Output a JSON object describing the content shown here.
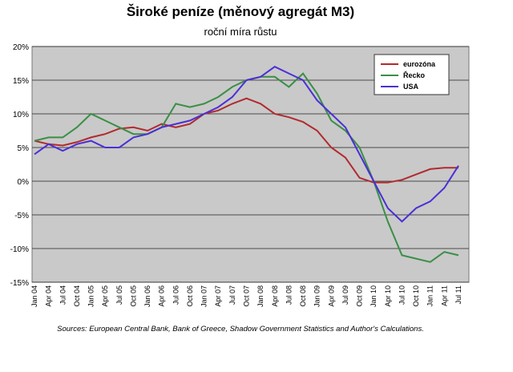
{
  "chart_data": {
    "type": "line",
    "title": "Široké peníze (měnový agregát M3)",
    "subtitle": "roční míra růstu",
    "source": "Sources: European Central Bank, Bank of Greece, Shadow Government Statistics and Author's Calculations.",
    "categories": [
      "Jan 04",
      "Apr 04",
      "Jul 04",
      "Oct 04",
      "Jan 05",
      "Apr 05",
      "Jul 05",
      "Oct 05",
      "Jan 06",
      "Apr 06",
      "Jul 06",
      "Oct 06",
      "Jan 07",
      "Apr 07",
      "Jul 07",
      "Oct 07",
      "Jan 08",
      "Apr 08",
      "Jul 08",
      "Oct 08",
      "Jan 09",
      "Apr 09",
      "Jul 09",
      "Oct 09",
      "Jan 10",
      "Apr 10",
      "Jul 10",
      "Oct 10",
      "Jan 11",
      "Apr 11",
      "Jul 11"
    ],
    "series": [
      {
        "name": "eurozóna",
        "color": "#b22a2e",
        "values": [
          6,
          5.5,
          5.3,
          5.8,
          6.5,
          7,
          7.8,
          8,
          7.5,
          8.5,
          8,
          8.5,
          10,
          10.5,
          11.5,
          12.3,
          11.5,
          10,
          9.5,
          8.8,
          7.5,
          5,
          3.5,
          0.5,
          -0.2,
          -0.2,
          0.2,
          1,
          1.8,
          2,
          2
        ]
      },
      {
        "name": "Řecko",
        "color": "#3a8f46",
        "values": [
          6,
          6.5,
          6.5,
          8,
          10,
          9,
          8,
          7,
          7,
          8,
          11.5,
          11,
          11.5,
          12.5,
          14,
          15,
          15.5,
          15.5,
          14,
          16,
          13,
          9,
          7.5,
          5,
          0,
          -6,
          -11,
          -11.5,
          -12,
          -10.5,
          -11
        ]
      },
      {
        "name": "USA",
        "color": "#4b2fd6",
        "values": [
          4,
          5.5,
          4.5,
          5.5,
          6,
          5,
          5,
          6.5,
          7,
          8,
          8.5,
          9,
          10,
          11,
          12.5,
          15,
          15.5,
          17,
          16,
          15,
          12,
          10,
          8,
          4,
          0,
          -4,
          -6,
          -4,
          -3,
          -1,
          2.3
        ]
      }
    ],
    "ylim": [
      -15,
      20
    ],
    "yticks": [
      {
        "value": -15,
        "label": "-15%"
      },
      {
        "value": -10,
        "label": "-10%"
      },
      {
        "value": -5,
        "label": "-5%"
      },
      {
        "value": 0,
        "label": "0%"
      },
      {
        "value": 5,
        "label": "5%"
      },
      {
        "value": 10,
        "label": "10%"
      },
      {
        "value": 15,
        "label": "15%"
      },
      {
        "value": 20,
        "label": "20%"
      }
    ],
    "grid": true,
    "legend": "top-right"
  }
}
